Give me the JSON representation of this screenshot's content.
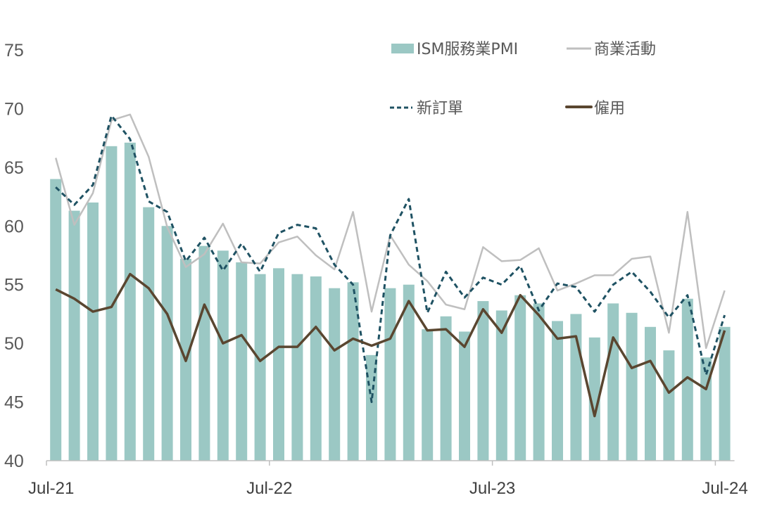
{
  "chart_data": {
    "type": "bar+line",
    "title": "",
    "xlabel": "",
    "ylabel": "",
    "ylim": [
      40,
      75
    ],
    "yticks": [
      40,
      45,
      50,
      55,
      60,
      65,
      70,
      75
    ],
    "xtick_labels": [
      "Jul-21",
      "Jul-22",
      "Jul-23",
      "Jul-24"
    ],
    "grid": false,
    "legend_placement": "top-right",
    "categories": [
      "Jul-21",
      "Aug-21",
      "Sep-21",
      "Oct-21",
      "Nov-21",
      "Dec-21",
      "Jan-22",
      "Feb-22",
      "Mar-22",
      "Apr-22",
      "May-22",
      "Jun-22",
      "Jul-22",
      "Aug-22",
      "Sep-22",
      "Oct-22",
      "Nov-22",
      "Dec-22",
      "Jan-23",
      "Feb-23",
      "Mar-23",
      "Apr-23",
      "May-23",
      "Jun-23",
      "Jul-23",
      "Aug-23",
      "Sep-23",
      "Oct-23",
      "Nov-23",
      "Dec-23",
      "Jan-24",
      "Feb-24",
      "Mar-24",
      "Apr-24",
      "May-24",
      "Jun-24",
      "Jul-24"
    ],
    "series": [
      {
        "name": "ISM服務業PMI",
        "type": "bar",
        "color": "#9bc8c4",
        "values": [
          64.0,
          61.3,
          62.0,
          66.8,
          67.1,
          61.6,
          60.0,
          57.2,
          58.3,
          57.9,
          56.9,
          55.9,
          56.4,
          55.9,
          55.7,
          54.7,
          55.2,
          49.0,
          54.7,
          55.0,
          51.2,
          52.3,
          51.0,
          53.6,
          52.8,
          54.1,
          53.4,
          51.9,
          52.5,
          50.5,
          53.4,
          52.6,
          51.4,
          49.4,
          53.8,
          48.8,
          51.4
        ]
      },
      {
        "name": "商業活動",
        "type": "line",
        "style": "solid",
        "color": "#bfbfbf",
        "values": [
          65.8,
          60.1,
          62.8,
          69.0,
          69.5,
          65.9,
          59.9,
          56.5,
          57.6,
          60.2,
          56.9,
          56.8,
          58.6,
          59.1,
          57.5,
          56.3,
          61.2,
          52.7,
          59.2,
          56.7,
          55.3,
          53.3,
          52.9,
          58.2,
          57.0,
          57.1,
          58.1,
          54.5,
          55.1,
          55.8,
          55.8,
          57.2,
          57.4,
          50.9,
          61.2,
          49.6,
          54.5
        ]
      },
      {
        "name": "新訂單",
        "type": "line",
        "style": "dashed",
        "color": "#1f5263",
        "values": [
          63.3,
          61.8,
          63.5,
          69.4,
          67.4,
          62.1,
          61.2,
          57.0,
          59.0,
          56.2,
          58.5,
          56.1,
          59.4,
          60.1,
          59.8,
          56.7,
          55.0,
          45.0,
          59.2,
          62.3,
          52.6,
          56.1,
          53.9,
          55.6,
          55.0,
          56.6,
          52.8,
          55.1,
          54.8,
          52.7,
          55.0,
          56.1,
          54.4,
          52.2,
          54.1,
          47.3,
          52.4
        ]
      },
      {
        "name": "僱用",
        "type": "line",
        "style": "solid",
        "color": "#5a4630",
        "values": [
          54.6,
          53.8,
          52.7,
          53.1,
          55.9,
          54.7,
          52.5,
          48.5,
          53.3,
          50.0,
          50.7,
          48.5,
          49.7,
          49.7,
          51.4,
          49.4,
          50.4,
          49.8,
          50.4,
          53.6,
          51.1,
          51.2,
          49.7,
          52.9,
          50.9,
          54.1,
          52.4,
          50.4,
          50.6,
          43.8,
          50.5,
          47.9,
          48.5,
          45.8,
          47.1,
          46.1,
          51.1
        ]
      }
    ]
  }
}
